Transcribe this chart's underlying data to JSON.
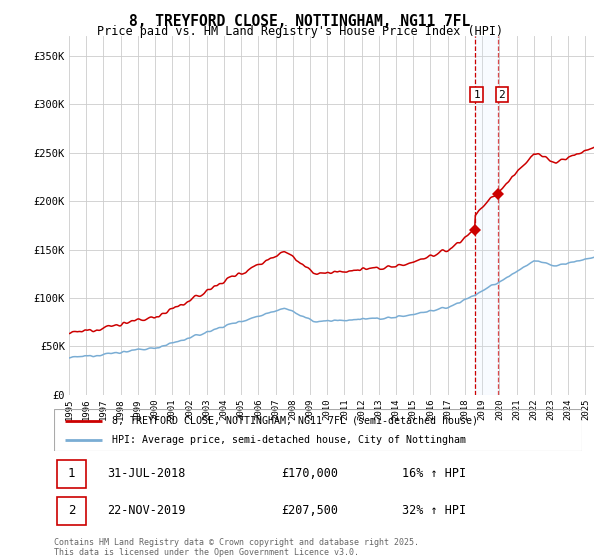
{
  "title": "8, TREYFORD CLOSE, NOTTINGHAM, NG11 7FL",
  "subtitle": "Price paid vs. HM Land Registry's House Price Index (HPI)",
  "ylim": [
    0,
    370000
  ],
  "yticks": [
    0,
    50000,
    100000,
    150000,
    200000,
    250000,
    300000,
    350000
  ],
  "ytick_labels": [
    "£0",
    "£50K",
    "£100K",
    "£150K",
    "£200K",
    "£250K",
    "£300K",
    "£350K"
  ],
  "legend_line1": "8, TREYFORD CLOSE, NOTTINGHAM, NG11 7FL (semi-detached house)",
  "legend_line2": "HPI: Average price, semi-detached house, City of Nottingham",
  "sale1_date": "31-JUL-2018",
  "sale1_price": "£170,000",
  "sale1_hpi": "16% ↑ HPI",
  "sale2_date": "22-NOV-2019",
  "sale2_price": "£207,500",
  "sale2_hpi": "32% ↑ HPI",
  "footer": "Contains HM Land Registry data © Crown copyright and database right 2025.\nThis data is licensed under the Open Government Licence v3.0.",
  "sale1_x": 2018.58,
  "sale1_y": 170000,
  "sale2_x": 2019.9,
  "sale2_y": 207500,
  "line1_color": "#cc0000",
  "line2_color": "#7aadd4",
  "shade_color": "#ddeeff",
  "vline_color": "#cc0000",
  "background_color": "#ffffff",
  "grid_color": "#cccccc",
  "xlim_start": 1995,
  "xlim_end": 2025.5
}
